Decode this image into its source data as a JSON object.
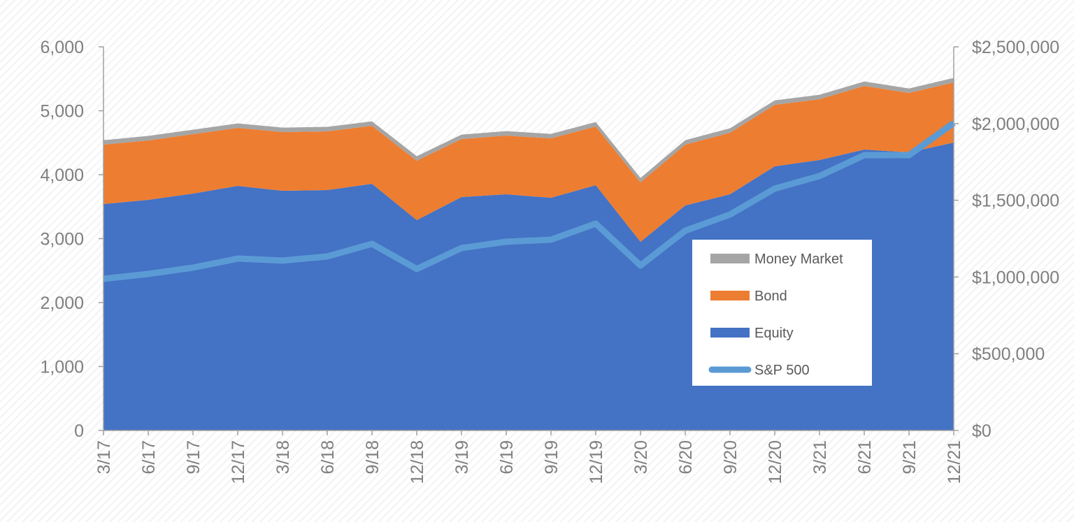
{
  "chart_data": {
    "type": "area",
    "stacked": true,
    "title": "",
    "xlabel": "",
    "ylabel": "",
    "y2label": "",
    "categories": [
      "3/17",
      "6/17",
      "9/17",
      "12/17",
      "3/18",
      "6/18",
      "9/18",
      "12/18",
      "3/19",
      "6/19",
      "9/19",
      "12/19",
      "3/20",
      "6/20",
      "9/20",
      "12/20",
      "3/21",
      "6/21",
      "9/21",
      "12/21"
    ],
    "ylim": [
      0,
      6000
    ],
    "yticks": [
      "0",
      "1,000",
      "2,000",
      "3,000",
      "4,000",
      "5,000",
      "6,000"
    ],
    "y2lim": [
      0,
      2500000
    ],
    "y2ticks": [
      "$0",
      "$500,000",
      "$1,000,000",
      "$1,500,000",
      "$2,000,000",
      "$2,500,000"
    ],
    "grid": false,
    "legend_placement": "center-right",
    "series": [
      {
        "name": "Equity",
        "axis": "left",
        "kind": "area",
        "color": "#4472c4",
        "values": [
          3541,
          3607,
          3705,
          3825,
          3749,
          3760,
          3858,
          3290,
          3650,
          3694,
          3639,
          3836,
          2951,
          3519,
          3694,
          4131,
          4230,
          4393,
          4350,
          4503
        ]
      },
      {
        "name": "Bond",
        "axis": "left",
        "kind": "area",
        "color": "#ed7d31",
        "values": [
          929,
          929,
          929,
          907,
          918,
          918,
          907,
          929,
          907,
          918,
          929,
          918,
          929,
          951,
          962,
          962,
          950,
          995,
          929,
          940
        ]
      },
      {
        "name": "Money Market",
        "axis": "left",
        "kind": "area",
        "color": "#a5a5a5",
        "values": [
          70,
          70,
          70,
          70,
          70,
          70,
          70,
          70,
          70,
          70,
          70,
          70,
          70,
          70,
          70,
          70,
          70,
          70,
          70,
          70
        ]
      },
      {
        "name": "S&P 500",
        "axis": "right",
        "kind": "line",
        "color": "#5b9bd5",
        "values": [
          988000,
          1020000,
          1061000,
          1120000,
          1107000,
          1134000,
          1216000,
          1052000,
          1189000,
          1230000,
          1243000,
          1348000,
          1075000,
          1302000,
          1407000,
          1576000,
          1658000,
          1794000,
          1794000,
          2004000
        ]
      }
    ],
    "legend_order": [
      "Money Market",
      "Bond",
      "Equity",
      "S&P 500"
    ]
  }
}
